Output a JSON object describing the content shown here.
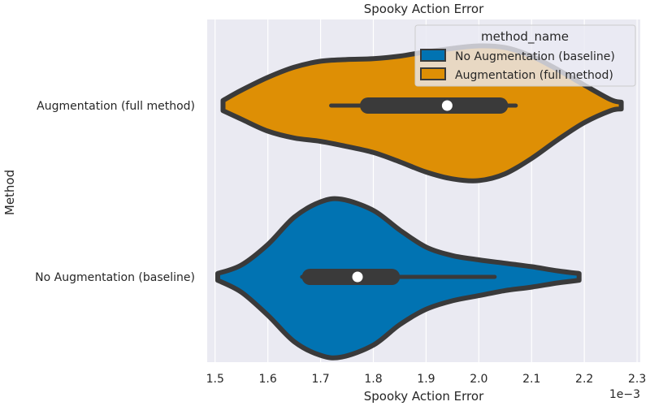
{
  "chart_data": {
    "type": "violin",
    "title": "Spooky Action Error",
    "xlabel": "Spooky Action Error",
    "ylabel": "Method",
    "x_scale_label": "1e−3",
    "xlim": [
      1.485,
      2.306
    ],
    "x_ticks": [
      1.5,
      1.6,
      1.7,
      1.8,
      1.9,
      2.0,
      2.1,
      2.2,
      2.3
    ],
    "x_tick_labels": [
      "1.5",
      "1.6",
      "1.7",
      "1.8",
      "1.9",
      "2.0",
      "2.1",
      "2.2",
      "2.3"
    ],
    "grid": true,
    "legend": {
      "title": "method_name",
      "placement": "top-right",
      "entries": [
        "No Augmentation (baseline)",
        "Augmentation (full method)"
      ]
    },
    "categories": [
      "Augmentation (full method)",
      "No Augmentation (baseline)"
    ],
    "series": [
      {
        "name": "Augmentation (full method)",
        "color": "#de8f05",
        "range": [
          1.515,
          2.27
        ],
        "whisker": [
          1.72,
          2.07
        ],
        "quartiles": [
          1.79,
          2.04
        ],
        "median": 1.94,
        "density_x": [
          1.515,
          1.55,
          1.6,
          1.65,
          1.7,
          1.75,
          1.8,
          1.85,
          1.9,
          1.95,
          2.0,
          2.05,
          2.1,
          2.15,
          2.2,
          2.25,
          2.27
        ],
        "density_upper": [
          0.06,
          0.18,
          0.33,
          0.45,
          0.52,
          0.54,
          0.55,
          0.58,
          0.63,
          0.67,
          0.7,
          0.68,
          0.58,
          0.42,
          0.24,
          0.07,
          0.04
        ],
        "density_lower": [
          0.06,
          0.16,
          0.3,
          0.38,
          0.42,
          0.48,
          0.55,
          0.66,
          0.78,
          0.86,
          0.88,
          0.8,
          0.62,
          0.4,
          0.2,
          0.06,
          0.04
        ]
      },
      {
        "name": "No Augmentation (baseline)",
        "color": "#0173b2",
        "range": [
          1.505,
          2.19
        ],
        "whisker": [
          1.665,
          2.03
        ],
        "quartiles": [
          1.68,
          1.835
        ],
        "median": 1.77,
        "density_x": [
          1.505,
          1.55,
          1.6,
          1.65,
          1.7,
          1.74,
          1.8,
          1.85,
          1.9,
          1.95,
          2.0,
          2.05,
          2.1,
          2.15,
          2.19
        ],
        "density_upper": [
          0.04,
          0.14,
          0.38,
          0.7,
          0.88,
          0.91,
          0.78,
          0.55,
          0.35,
          0.25,
          0.2,
          0.16,
          0.12,
          0.07,
          0.04
        ],
        "density_lower": [
          0.04,
          0.18,
          0.45,
          0.76,
          0.92,
          0.94,
          0.8,
          0.56,
          0.38,
          0.28,
          0.22,
          0.16,
          0.12,
          0.07,
          0.04
        ]
      }
    ]
  }
}
